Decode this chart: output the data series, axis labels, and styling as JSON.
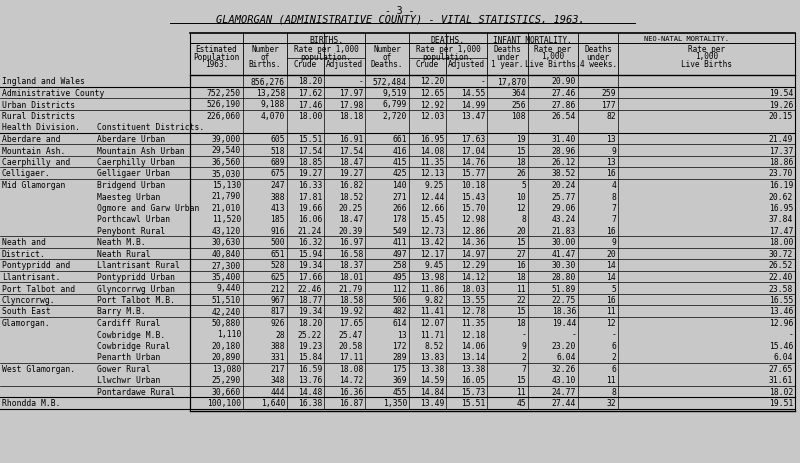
{
  "title_line1": "- 3 -",
  "title_line2": "GLAMORGAN (ADMINISTRATIVE COUNTY) - VITAL STATISTICS, 1963.",
  "bg_color": "#c8c8c8",
  "rows": [
    {
      "col1": "Ingland and Wales",
      "col2": "",
      "pop": "",
      "births": "856,276",
      "crude_b": "18.20",
      "adj_b": "-",
      "deaths": "572,484",
      "crude_d": "12.20",
      "adj_d": "-",
      "inf_d": "17,870",
      "inf_r": "20.90",
      "neo_d": "",
      "neo_r": ""
    },
    {
      "col1": "Administrative County",
      "col2": "",
      "pop": "752,250",
      "births": "13,258",
      "crude_b": "17.62",
      "adj_b": "17.97",
      "deaths": "9,519",
      "crude_d": "12.65",
      "adj_d": "14.55",
      "inf_d": "364",
      "inf_r": "27.46",
      "neo_d": "259",
      "neo_r": "19.54"
    },
    {
      "col1": "Urban Districts",
      "col2": "",
      "pop": "526,190",
      "births": "9,188",
      "crude_b": "17.46",
      "adj_b": "17.98",
      "deaths": "6,799",
      "crude_d": "12.92",
      "adj_d": "14.99",
      "inf_d": "256",
      "inf_r": "27.86",
      "neo_d": "177",
      "neo_r": "19.26"
    },
    {
      "col1": "Rural Districts",
      "col2": "",
      "pop": "226,060",
      "births": "4,070",
      "crude_b": "18.00",
      "adj_b": "18.18",
      "deaths": "2,720",
      "crude_d": "12.03",
      "adj_d": "13.47",
      "inf_d": "108",
      "inf_r": "26.54",
      "neo_d": "82",
      "neo_r": "20.15"
    },
    {
      "col1": "Health Division.",
      "col2": "Constituent Districts.",
      "pop": "",
      "births": "",
      "crude_b": "",
      "adj_b": "",
      "deaths": "",
      "crude_d": "",
      "adj_d": "",
      "inf_d": "",
      "inf_r": "",
      "neo_d": "",
      "neo_r": ""
    },
    {
      "col1": "Aberdare and",
      "col2": "Aberdare Urban",
      "pop": "39,000",
      "births": "605",
      "crude_b": "15.51",
      "adj_b": "16.91",
      "deaths": "661",
      "crude_d": "16.95",
      "adj_d": "17.63",
      "inf_d": "19",
      "inf_r": "31.40",
      "neo_d": "13",
      "neo_r": "21.49"
    },
    {
      "col1": "Mountain Ash.",
      "col2": "Mountain Ash Urban",
      "pop": "29,540",
      "births": "518",
      "crude_b": "17.54",
      "adj_b": "17.54",
      "deaths": "416",
      "crude_d": "14.08",
      "adj_d": "17.04",
      "inf_d": "15",
      "inf_r": "28.96",
      "neo_d": "9",
      "neo_r": "17.37"
    },
    {
      "col1": "Caerphilly and",
      "col2": "Caerphilly Urban",
      "pop": "36,560",
      "births": "689",
      "crude_b": "18.85",
      "adj_b": "18.47",
      "deaths": "415",
      "crude_d": "11.35",
      "adj_d": "14.76",
      "inf_d": "18",
      "inf_r": "26.12",
      "neo_d": "13",
      "neo_r": "18.86"
    },
    {
      "col1": "Celligaer.",
      "col2": "Gelligaer Urban",
      "pop": "35,030",
      "births": "675",
      "crude_b": "19.27",
      "adj_b": "19.27",
      "deaths": "425",
      "crude_d": "12.13",
      "adj_d": "15.77",
      "inf_d": "26",
      "inf_r": "38.52",
      "neo_d": "16",
      "neo_r": "23.70"
    },
    {
      "col1": "Mid Glamorgan",
      "col2": "Bridgend Urban",
      "pop": "15,130",
      "births": "247",
      "crude_b": "16.33",
      "adj_b": "16.82",
      "deaths": "140",
      "crude_d": "9.25",
      "adj_d": "10.18",
      "inf_d": "5",
      "inf_r": "20.24",
      "neo_d": "4",
      "neo_r": "16.19"
    },
    {
      "col1": "",
      "col2": "Maesteg Urban",
      "pop": "21,790",
      "births": "388",
      "crude_b": "17.81",
      "adj_b": "18.52",
      "deaths": "271",
      "crude_d": "12.44",
      "adj_d": "15.43",
      "inf_d": "10",
      "inf_r": "25.77",
      "neo_d": "8",
      "neo_r": "20.62"
    },
    {
      "col1": "",
      "col2": "Ogmore and Garw Urban",
      "pop": "21,010",
      "births": "413",
      "crude_b": "19.66",
      "adj_b": "20.25",
      "deaths": "266",
      "crude_d": "12.66",
      "adj_d": "15.70",
      "inf_d": "12",
      "inf_r": "29.06",
      "neo_d": "7",
      "neo_r": "16.95"
    },
    {
      "col1": "",
      "col2": "Porthcawl Urban",
      "pop": "11,520",
      "births": "185",
      "crude_b": "16.06",
      "adj_b": "18.47",
      "deaths": "178",
      "crude_d": "15.45",
      "adj_d": "12.98",
      "inf_d": "8",
      "inf_r": "43.24",
      "neo_d": "7",
      "neo_r": "37.84"
    },
    {
      "col1": "",
      "col2": "Penybont Rural",
      "pop": "43,120",
      "births": "916",
      "crude_b": "21.24",
      "adj_b": "20.39",
      "deaths": "549",
      "crude_d": "12.73",
      "adj_d": "12.86",
      "inf_d": "20",
      "inf_r": "21.83",
      "neo_d": "16",
      "neo_r": "17.47"
    },
    {
      "col1": "Neath and",
      "col2": "Neath M.B.",
      "pop": "30,630",
      "births": "500",
      "crude_b": "16.32",
      "adj_b": "16.97",
      "deaths": "411",
      "crude_d": "13.42",
      "adj_d": "14.36",
      "inf_d": "15",
      "inf_r": "30.00",
      "neo_d": "9",
      "neo_r": "18.00"
    },
    {
      "col1": "District.",
      "col2": "Neath Rural",
      "pop": "40,840",
      "births": "651",
      "crude_b": "15.94",
      "adj_b": "16.58",
      "deaths": "497",
      "crude_d": "12.17",
      "adj_d": "14.97",
      "inf_d": "27",
      "inf_r": "41.47",
      "neo_d": "20",
      "neo_r": "30.72"
    },
    {
      "col1": "Pontypridd and",
      "col2": "Llantrisant Rural",
      "pop": "27,300",
      "births": "528",
      "crude_b": "19.34",
      "adj_b": "18.37",
      "deaths": "258",
      "crude_d": "9.45",
      "adj_d": "12.29",
      "inf_d": "16",
      "inf_r": "30.30",
      "neo_d": "14",
      "neo_r": "26.52"
    },
    {
      "col1": "Llantrisant.",
      "col2": "Pontypridd Urban",
      "pop": "35,400",
      "births": "625",
      "crude_b": "17.66",
      "adj_b": "18.01",
      "deaths": "495",
      "crude_d": "13.98",
      "adj_d": "14.12",
      "inf_d": "18",
      "inf_r": "28.80",
      "neo_d": "14",
      "neo_r": "22.40"
    },
    {
      "col1": "Port Talbot and",
      "col2": "Glyncorrwg Urban",
      "pop": "9,440",
      "births": "212",
      "crude_b": "22.46",
      "adj_b": "21.79",
      "deaths": "112",
      "crude_d": "11.86",
      "adj_d": "18.03",
      "inf_d": "11",
      "inf_r": "51.89",
      "neo_d": "5",
      "neo_r": "23.58"
    },
    {
      "col1": "Clyncorrwg.",
      "col2": "Port Talbot M.B.",
      "pop": "51,510",
      "births": "967",
      "crude_b": "18.77",
      "adj_b": "18.58",
      "deaths": "506",
      "crude_d": "9.82",
      "adj_d": "13.55",
      "inf_d": "22",
      "inf_r": "22.75",
      "neo_d": "16",
      "neo_r": "16.55"
    },
    {
      "col1": "South East",
      "col2": "Barry M.B.",
      "pop": "42,240",
      "births": "817",
      "crude_b": "19.34",
      "adj_b": "19.92",
      "deaths": "482",
      "crude_d": "11.41",
      "adj_d": "12.78",
      "inf_d": "15",
      "inf_r": "18.36",
      "neo_d": "11",
      "neo_r": "13.46"
    },
    {
      "col1": "Glamorgan.",
      "col2": "Cardiff Rural",
      "pop": "50,880",
      "births": "926",
      "crude_b": "18.20",
      "adj_b": "17.65",
      "deaths": "614",
      "crude_d": "12.07",
      "adj_d": "11.35",
      "inf_d": "18",
      "inf_r": "19.44",
      "neo_d": "12",
      "neo_r": "12.96"
    },
    {
      "col1": "",
      "col2": "Cowbridge M.B.",
      "pop": "1,110",
      "births": "28",
      "crude_b": "25.22",
      "adj_b": "25.47",
      "deaths": "13",
      "crude_d": "11.71",
      "adj_d": "12.18",
      "inf_d": "-",
      "inf_r": "-",
      "neo_d": "-",
      "neo_r": "-"
    },
    {
      "col1": "",
      "col2": "Cowbridge Rural",
      "pop": "20,180",
      "births": "388",
      "crude_b": "19.23",
      "adj_b": "20.58",
      "deaths": "172",
      "crude_d": "8.52",
      "adj_d": "14.06",
      "inf_d": "9",
      "inf_r": "23.20",
      "neo_d": "6",
      "neo_r": "15.46"
    },
    {
      "col1": "",
      "col2": "Penarth Urban",
      "pop": "20,890",
      "births": "331",
      "crude_b": "15.84",
      "adj_b": "17.11",
      "deaths": "289",
      "crude_d": "13.83",
      "adj_d": "13.14",
      "inf_d": "2",
      "inf_r": "6.04",
      "neo_d": "2",
      "neo_r": "6.04"
    },
    {
      "col1": "West Glamorgan.",
      "col2": "Gower Rural",
      "pop": "13,080",
      "births": "217",
      "crude_b": "16.59",
      "adj_b": "18.08",
      "deaths": "175",
      "crude_d": "13.38",
      "adj_d": "13.38",
      "inf_d": "7",
      "inf_r": "32.26",
      "neo_d": "6",
      "neo_r": "27.65"
    },
    {
      "col1": "",
      "col2": "Llwchwr Urban",
      "pop": "25,290",
      "births": "348",
      "crude_b": "13.76",
      "adj_b": "14.72",
      "deaths": "369",
      "crude_d": "14.59",
      "adj_d": "16.05",
      "inf_d": "15",
      "inf_r": "43.10",
      "neo_d": "11",
      "neo_r": "31.61"
    },
    {
      "col1": "",
      "col2": "Pontardawe Rural",
      "pop": "30,660",
      "births": "444",
      "crude_b": "14.48",
      "adj_b": "16.36",
      "deaths": "455",
      "crude_d": "14.84",
      "adj_d": "15.73",
      "inf_d": "11",
      "inf_r": "24.77",
      "neo_d": "8",
      "neo_r": "18.02"
    },
    {
      "col1": "Rhondda M.B.",
      "col2": "",
      "pop": "100,100",
      "births": "1,640",
      "crude_b": "16.38",
      "adj_b": "16.87",
      "deaths": "1,350",
      "crude_d": "13.49",
      "adj_d": "15.51",
      "inf_d": "45",
      "inf_r": "27.44",
      "neo_d": "32",
      "neo_r": "19.51"
    }
  ],
  "separator_rows": [
    1,
    2,
    3,
    5,
    6,
    7,
    8,
    9,
    14,
    15,
    16,
    17,
    18,
    19,
    20,
    21,
    25,
    27,
    28
  ],
  "thick_separator_rows": [
    1,
    5,
    28
  ]
}
